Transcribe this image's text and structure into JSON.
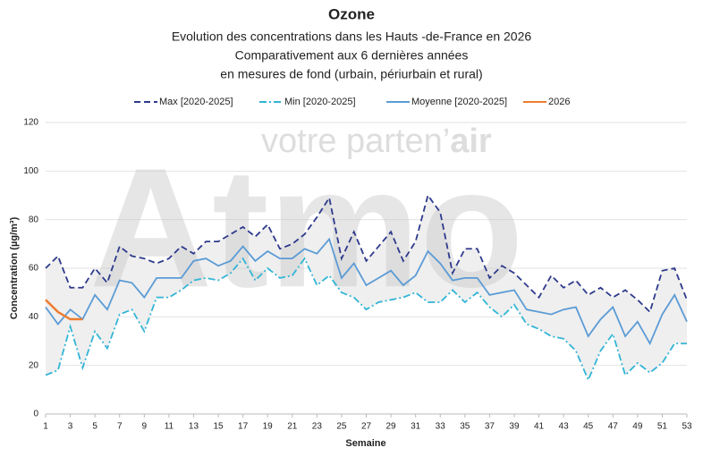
{
  "chart_data": {
    "type": "line",
    "title": "Ozone",
    "subtitle": [
      "Evolution des concentrations dans les Hauts -de-France en 2026",
      "Comparativement aux 6 dernières années",
      "en mesures de fond (urbain, périurbain et rural)"
    ],
    "watermark": {
      "logo": "Atmo",
      "tagline": "votre parten’",
      "tagline_bold": "air"
    },
    "xlabel": "Semaine",
    "ylabel": "Concentration (µg/m³)",
    "x": [
      1,
      2,
      3,
      4,
      5,
      6,
      7,
      8,
      9,
      10,
      11,
      12,
      13,
      14,
      15,
      16,
      17,
      18,
      19,
      20,
      21,
      22,
      23,
      24,
      25,
      26,
      27,
      28,
      29,
      30,
      31,
      32,
      33,
      34,
      35,
      36,
      37,
      38,
      39,
      40,
      41,
      42,
      43,
      44,
      45,
      46,
      47,
      48,
      49,
      50,
      51,
      52,
      53
    ],
    "xlim": [
      1,
      53
    ],
    "xticks": [
      1,
      3,
      5,
      7,
      9,
      11,
      13,
      15,
      17,
      19,
      21,
      23,
      25,
      27,
      29,
      31,
      33,
      35,
      37,
      39,
      41,
      43,
      45,
      47,
      49,
      51,
      53
    ],
    "ylim": [
      0,
      120
    ],
    "yticks": [
      0,
      20,
      40,
      60,
      80,
      100,
      120
    ],
    "grid": true,
    "legend": "top",
    "band_color": "#efefef",
    "series": [
      {
        "name": "Max [2020-2025]",
        "color": "#2e3a8c",
        "dash": "dashed",
        "values": [
          60,
          65,
          52,
          52,
          60,
          54,
          69,
          65,
          64,
          62,
          64,
          69,
          66,
          71,
          71,
          74,
          77,
          73,
          78,
          68,
          70,
          74,
          81,
          89,
          64,
          75,
          63,
          69,
          75,
          63,
          71,
          90,
          83,
          58,
          68,
          68,
          56,
          61,
          58,
          53,
          48,
          57,
          52,
          55,
          49,
          52,
          48,
          51,
          47,
          42,
          59,
          60,
          47
        ]
      },
      {
        "name": "Min [2020-2025]",
        "color": "#33b5d6",
        "dash": "dashdot",
        "values": [
          16,
          18,
          36,
          19,
          34,
          27,
          41,
          43,
          34,
          48,
          48,
          51,
          55,
          56,
          55,
          58,
          64,
          55,
          60,
          56,
          57,
          64,
          53,
          57,
          50,
          48,
          43,
          46,
          47,
          48,
          50,
          46,
          46,
          51,
          46,
          50,
          44,
          40,
          45,
          37,
          35,
          32,
          31,
          26,
          14,
          26,
          33,
          16,
          21,
          17,
          21,
          29,
          29
        ]
      },
      {
        "name": "Moyenne [2020-2025]",
        "color": "#5b9bd5",
        "dash": "solid",
        "values": [
          44,
          37,
          43,
          39,
          49,
          43,
          55,
          54,
          48,
          56,
          56,
          56,
          63,
          64,
          61,
          63,
          69,
          63,
          67,
          64,
          64,
          68,
          66,
          72,
          56,
          62,
          53,
          56,
          59,
          53,
          57,
          67,
          62,
          55,
          56,
          56,
          49,
          50,
          51,
          43,
          42,
          41,
          43,
          44,
          32,
          39,
          44,
          32,
          38,
          29,
          41,
          49,
          38
        ]
      },
      {
        "name": "2026",
        "color": "#ed7d31",
        "dash": "solid",
        "values": [
          47,
          42,
          39,
          39,
          null,
          null,
          null,
          null,
          null,
          null,
          null,
          null,
          null,
          null,
          null,
          null,
          null,
          null,
          null,
          null,
          null,
          null,
          null,
          null,
          null,
          null,
          null,
          null,
          null,
          null,
          null,
          null,
          null,
          null,
          null,
          null,
          null,
          null,
          null,
          null,
          null,
          null,
          null,
          null,
          null,
          null,
          null,
          null,
          null,
          null,
          null,
          null,
          null
        ]
      }
    ]
  }
}
